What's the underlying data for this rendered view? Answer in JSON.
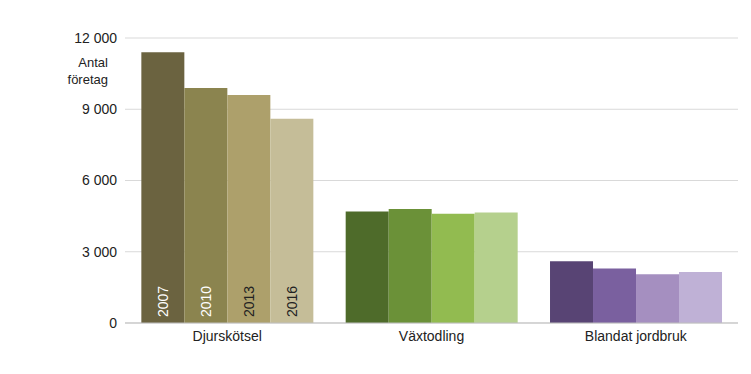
{
  "chart_data": {
    "type": "bar",
    "ylabel": "Antal företag",
    "categories": [
      "Djurskötsel",
      "Växtodling",
      "Blandat jordbruk"
    ],
    "series": [
      {
        "name": "2007",
        "values": [
          11400,
          4700,
          2600
        ],
        "colors": [
          "#6b6340",
          "#4e6b2a",
          "#584474"
        ]
      },
      {
        "name": "2010",
        "values": [
          9900,
          4800,
          2300
        ],
        "colors": [
          "#8b844f",
          "#6b9138",
          "#7a609f"
        ]
      },
      {
        "name": "2013",
        "values": [
          9600,
          4600,
          2050
        ],
        "colors": [
          "#ada06b",
          "#92bb50",
          "#a58fc0"
        ]
      },
      {
        "name": "2016",
        "values": [
          8600,
          4650,
          2150
        ],
        "colors": [
          "#c5bd98",
          "#b5d08d",
          "#bfb1d6"
        ]
      }
    ],
    "ylim": [
      0,
      12000
    ],
    "yticks": [
      0,
      {
        "value": 3000,
        "label": "3 000"
      },
      {
        "value": 6000,
        "label": "6 000"
      },
      {
        "value": 9000,
        "label": "9 000"
      },
      {
        "value": 12000,
        "label": "12 000"
      }
    ],
    "grid": true
  }
}
